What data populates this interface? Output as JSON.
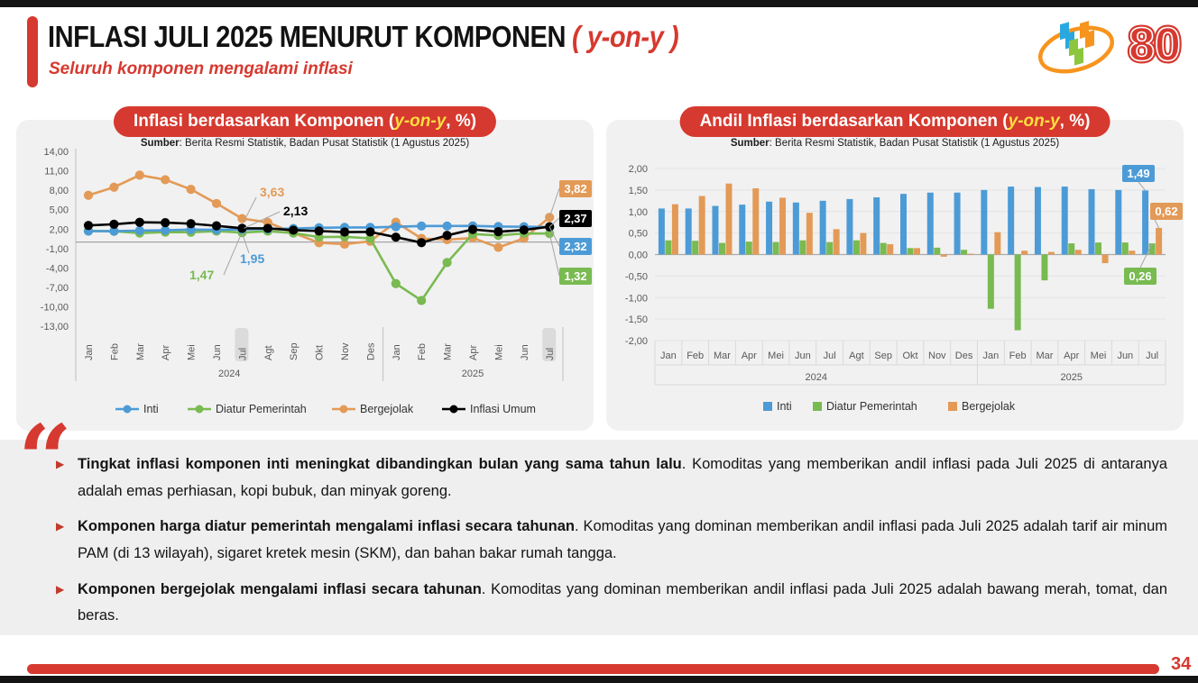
{
  "slide": {
    "title": "INFLASI JULI 2025 MENURUT KOMPONEN",
    "title_accent": "( y-on-y )",
    "subtitle": "Seluruh komponen mengalami inflasi",
    "badge": "80",
    "page_number": "34"
  },
  "colors": {
    "red": "#D6392F",
    "yellow": "#FFDE3F",
    "inti": "#4C9BD6",
    "diatur": "#79BA51",
    "bergejolak": "#E39A57",
    "umum": "#000000",
    "axis_text": "#595959"
  },
  "left_chart": {
    "title_prefix": "Inflasi berdasarkan Komponen (",
    "title_highlight": "y-on-y",
    "title_suffix": ", %)",
    "source_label": "Sumber",
    "source_text": ": Berita Resmi Statistik, Badan Pusat Statistik (1 Agustus 2025)"
  },
  "right_chart": {
    "title_prefix": "Andil Inflasi berdasarkan Komponen (",
    "title_highlight": "y-on-y",
    "title_suffix": ", %)",
    "source_label": "Sumber",
    "source_text": ": Berita Resmi Statistik, Badan Pusat Statistik (1 Agustus 2025)"
  },
  "chart_data": [
    {
      "type": "line",
      "title": "Inflasi berdasarkan Komponen (y-on-y, %)",
      "categories": [
        "Jan",
        "Feb",
        "Mar",
        "Apr",
        "Mei",
        "Jun",
        "Jul",
        "Agt",
        "Sep",
        "Okt",
        "Nov",
        "Des",
        "Jan",
        "Feb",
        "Mar",
        "Apr",
        "Mei",
        "Jun",
        "Jul"
      ],
      "year_groups": [
        {
          "label": "2024",
          "span": 12
        },
        {
          "label": "2025",
          "span": 7
        }
      ],
      "highlighted_categories": [
        6,
        18
      ],
      "ylim": [
        -13,
        14
      ],
      "ytick_step": 3,
      "grid": false,
      "legend_position": "bottom",
      "series": [
        {
          "name": "Inti",
          "key": "inti",
          "values": [
            1.68,
            1.68,
            1.77,
            1.82,
            1.93,
            1.9,
            1.95,
            2.02,
            2.09,
            2.21,
            2.26,
            2.26,
            2.36,
            2.48,
            2.48,
            2.5,
            2.4,
            2.37,
            2.32
          ]
        },
        {
          "name": "Diatur Pemerintah",
          "key": "diatur",
          "values": [
            1.74,
            1.67,
            1.39,
            1.54,
            1.52,
            1.68,
            1.47,
            1.68,
            1.4,
            0.77,
            0.82,
            0.56,
            -6.41,
            -9.02,
            -3.16,
            1.25,
            1.02,
            1.34,
            1.32
          ]
        },
        {
          "name": "Bergejolak",
          "key": "bergejolak",
          "values": [
            7.22,
            8.47,
            10.33,
            9.63,
            8.14,
            5.96,
            3.63,
            3.04,
            1.43,
            -0.11,
            -0.32,
            0.12,
            3.07,
            0.56,
            0.37,
            0.64,
            -0.82,
            0.57,
            3.82
          ]
        },
        {
          "name": "Inflasi Umum",
          "key": "umum",
          "values": [
            2.57,
            2.75,
            3.05,
            3.0,
            2.84,
            2.51,
            2.13,
            2.12,
            1.84,
            1.71,
            1.55,
            1.57,
            0.76,
            -0.09,
            1.03,
            1.95,
            1.6,
            1.87,
            2.37
          ]
        }
      ],
      "annotations_jul2024": [
        {
          "series": "bergejolak",
          "text": "3,63"
        },
        {
          "series": "umum",
          "text": "2,13"
        },
        {
          "series": "inti",
          "text": "1,95"
        },
        {
          "series": "diatur",
          "text": "1,47"
        }
      ],
      "annotations_jul2025": [
        {
          "series": "bergejolak",
          "text": "3,82"
        },
        {
          "series": "umum",
          "text": "2,37"
        },
        {
          "series": "inti",
          "text": "2,32"
        },
        {
          "series": "diatur",
          "text": "1,32"
        }
      ]
    },
    {
      "type": "bar",
      "title": "Andil Inflasi berdasarkan Komponen (y-on-y, %)",
      "categories": [
        "Jan",
        "Feb",
        "Mar",
        "Apr",
        "Mei",
        "Jun",
        "Jul",
        "Agt",
        "Sep",
        "Okt",
        "Nov",
        "Des",
        "Jan",
        "Feb",
        "Mar",
        "Apr",
        "Mei",
        "Jun",
        "Jul"
      ],
      "year_groups": [
        {
          "label": "2024",
          "span": 12
        },
        {
          "label": "2025",
          "span": 7
        }
      ],
      "ylim": [
        -2,
        2
      ],
      "ytick_step": 0.5,
      "grid": true,
      "legend_position": "bottom",
      "series": [
        {
          "name": "Inti",
          "key": "inti",
          "values": [
            1.07,
            1.07,
            1.13,
            1.16,
            1.23,
            1.21,
            1.25,
            1.29,
            1.33,
            1.41,
            1.44,
            1.44,
            1.5,
            1.58,
            1.57,
            1.58,
            1.52,
            1.5,
            1.49
          ]
        },
        {
          "name": "Diatur Pemerintah",
          "key": "diatur",
          "values": [
            0.33,
            0.32,
            0.27,
            0.3,
            0.29,
            0.33,
            0.29,
            0.33,
            0.27,
            0.15,
            0.16,
            0.11,
            -1.26,
            -1.76,
            -0.6,
            0.26,
            0.28,
            0.28,
            0.26
          ]
        },
        {
          "name": "Bergejolak",
          "key": "bergejolak",
          "values": [
            1.17,
            1.36,
            1.65,
            1.54,
            1.32,
            0.97,
            0.59,
            0.5,
            0.24,
            0.15,
            -0.05,
            0.02,
            0.52,
            0.09,
            0.06,
            0.11,
            -0.2,
            0.09,
            0.62
          ]
        }
      ],
      "annotations_jul2025": [
        {
          "series": "inti",
          "text": "1,49"
        },
        {
          "series": "bergejolak",
          "text": "0,62"
        },
        {
          "series": "diatur",
          "text": "0,26"
        }
      ]
    }
  ],
  "bullets": [
    {
      "bold": "Tingkat inflasi komponen inti meningkat dibandingkan bulan yang sama tahun lalu",
      "rest": ". Komoditas yang memberikan andil inflasi pada Juli 2025 di antaranya adalah emas perhiasan, kopi bubuk, dan minyak goreng."
    },
    {
      "bold": "Komponen harga diatur pemerintah mengalami inflasi secara tahunan",
      "rest": ". Komoditas yang dominan memberikan andil inflasi pada Juli 2025 adalah tarif air minum PAM (di 13 wilayah), sigaret kretek mesin (SKM), dan bahan bakar rumah tangga."
    },
    {
      "bold": "Komponen bergejolak mengalami inflasi secara tahunan",
      "rest": ". Komoditas yang dominan memberikan andil inflasi pada Juli 2025 adalah bawang merah, tomat, dan beras."
    }
  ]
}
